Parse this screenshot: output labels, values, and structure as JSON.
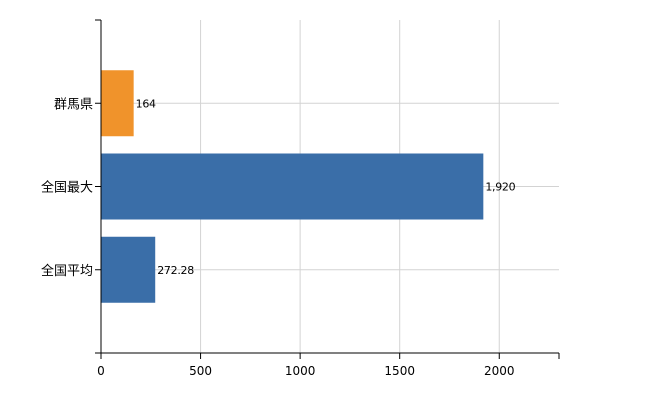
{
  "chart_data": {
    "type": "bar",
    "orientation": "horizontal",
    "categories": [
      "群馬県",
      "全国最大",
      "全国平均"
    ],
    "values": [
      164,
      1920,
      272.28
    ],
    "value_labels": [
      "164",
      "1,920",
      "272.28"
    ],
    "bar_colors": [
      "#F0932B",
      "#3A6EA8",
      "#3A6EA8"
    ],
    "xlim": [
      0,
      2300
    ],
    "xticks": [
      0,
      500,
      1000,
      1500,
      2000
    ],
    "xtick_labels": [
      "0",
      "500",
      "1000",
      "1500",
      "2000"
    ],
    "grid": true,
    "legend": "none",
    "title": "",
    "xlabel": "",
    "ylabel": ""
  }
}
